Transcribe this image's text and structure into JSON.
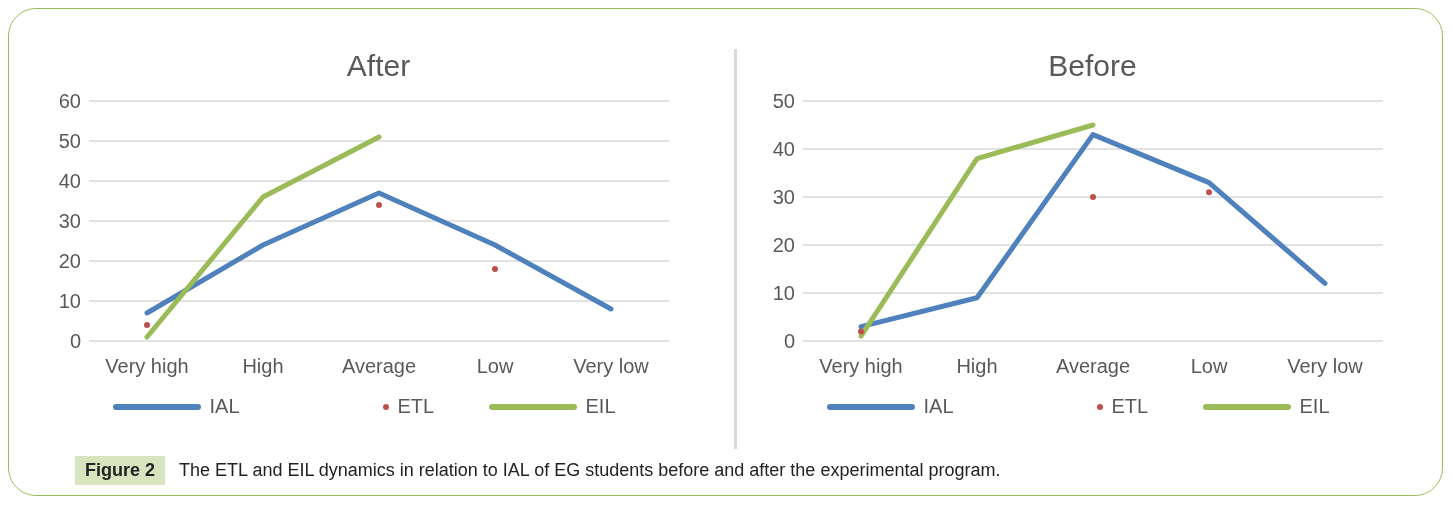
{
  "chart_data": [
    {
      "type": "line",
      "title": "After",
      "categories": [
        "Very high",
        "High",
        "Average",
        "Low",
        "Very low"
      ],
      "ylim": [
        0,
        60
      ],
      "yticks": [
        0,
        10,
        20,
        30,
        40,
        50,
        60
      ],
      "grid": "y",
      "legend": "bottom",
      "series": [
        {
          "name": "IAL",
          "color": "#4f81bd",
          "values": [
            7,
            24,
            37,
            24,
            8
          ]
        },
        {
          "name": "ETL",
          "type": "scatter",
          "color": "#c0504d",
          "values": [
            4,
            null,
            34,
            18,
            null
          ]
        },
        {
          "name": "EIL",
          "color": "#9bbb59",
          "values": [
            1,
            36,
            51,
            null,
            null
          ]
        }
      ]
    },
    {
      "type": "line",
      "title": "Before",
      "categories": [
        "Very high",
        "High",
        "Average",
        "Low",
        "Very low"
      ],
      "ylim": [
        0,
        50
      ],
      "yticks": [
        0,
        10,
        20,
        30,
        40,
        50
      ],
      "grid": "y",
      "legend": "bottom",
      "series": [
        {
          "name": "IAL",
          "color": "#4f81bd",
          "values": [
            3,
            9,
            43,
            33,
            12
          ]
        },
        {
          "name": "ETL",
          "type": "scatter",
          "color": "#c0504d",
          "values": [
            2,
            null,
            30,
            31,
            null
          ]
        },
        {
          "name": "EIL",
          "color": "#9bbb59",
          "values": [
            1,
            38,
            45,
            null,
            null
          ]
        }
      ],
      "annotations": [
        "Figure 2",
        "The ETL and EIL dynamics in relation to IAL of EG students before and after the experimental program."
      ]
    }
  ]
}
